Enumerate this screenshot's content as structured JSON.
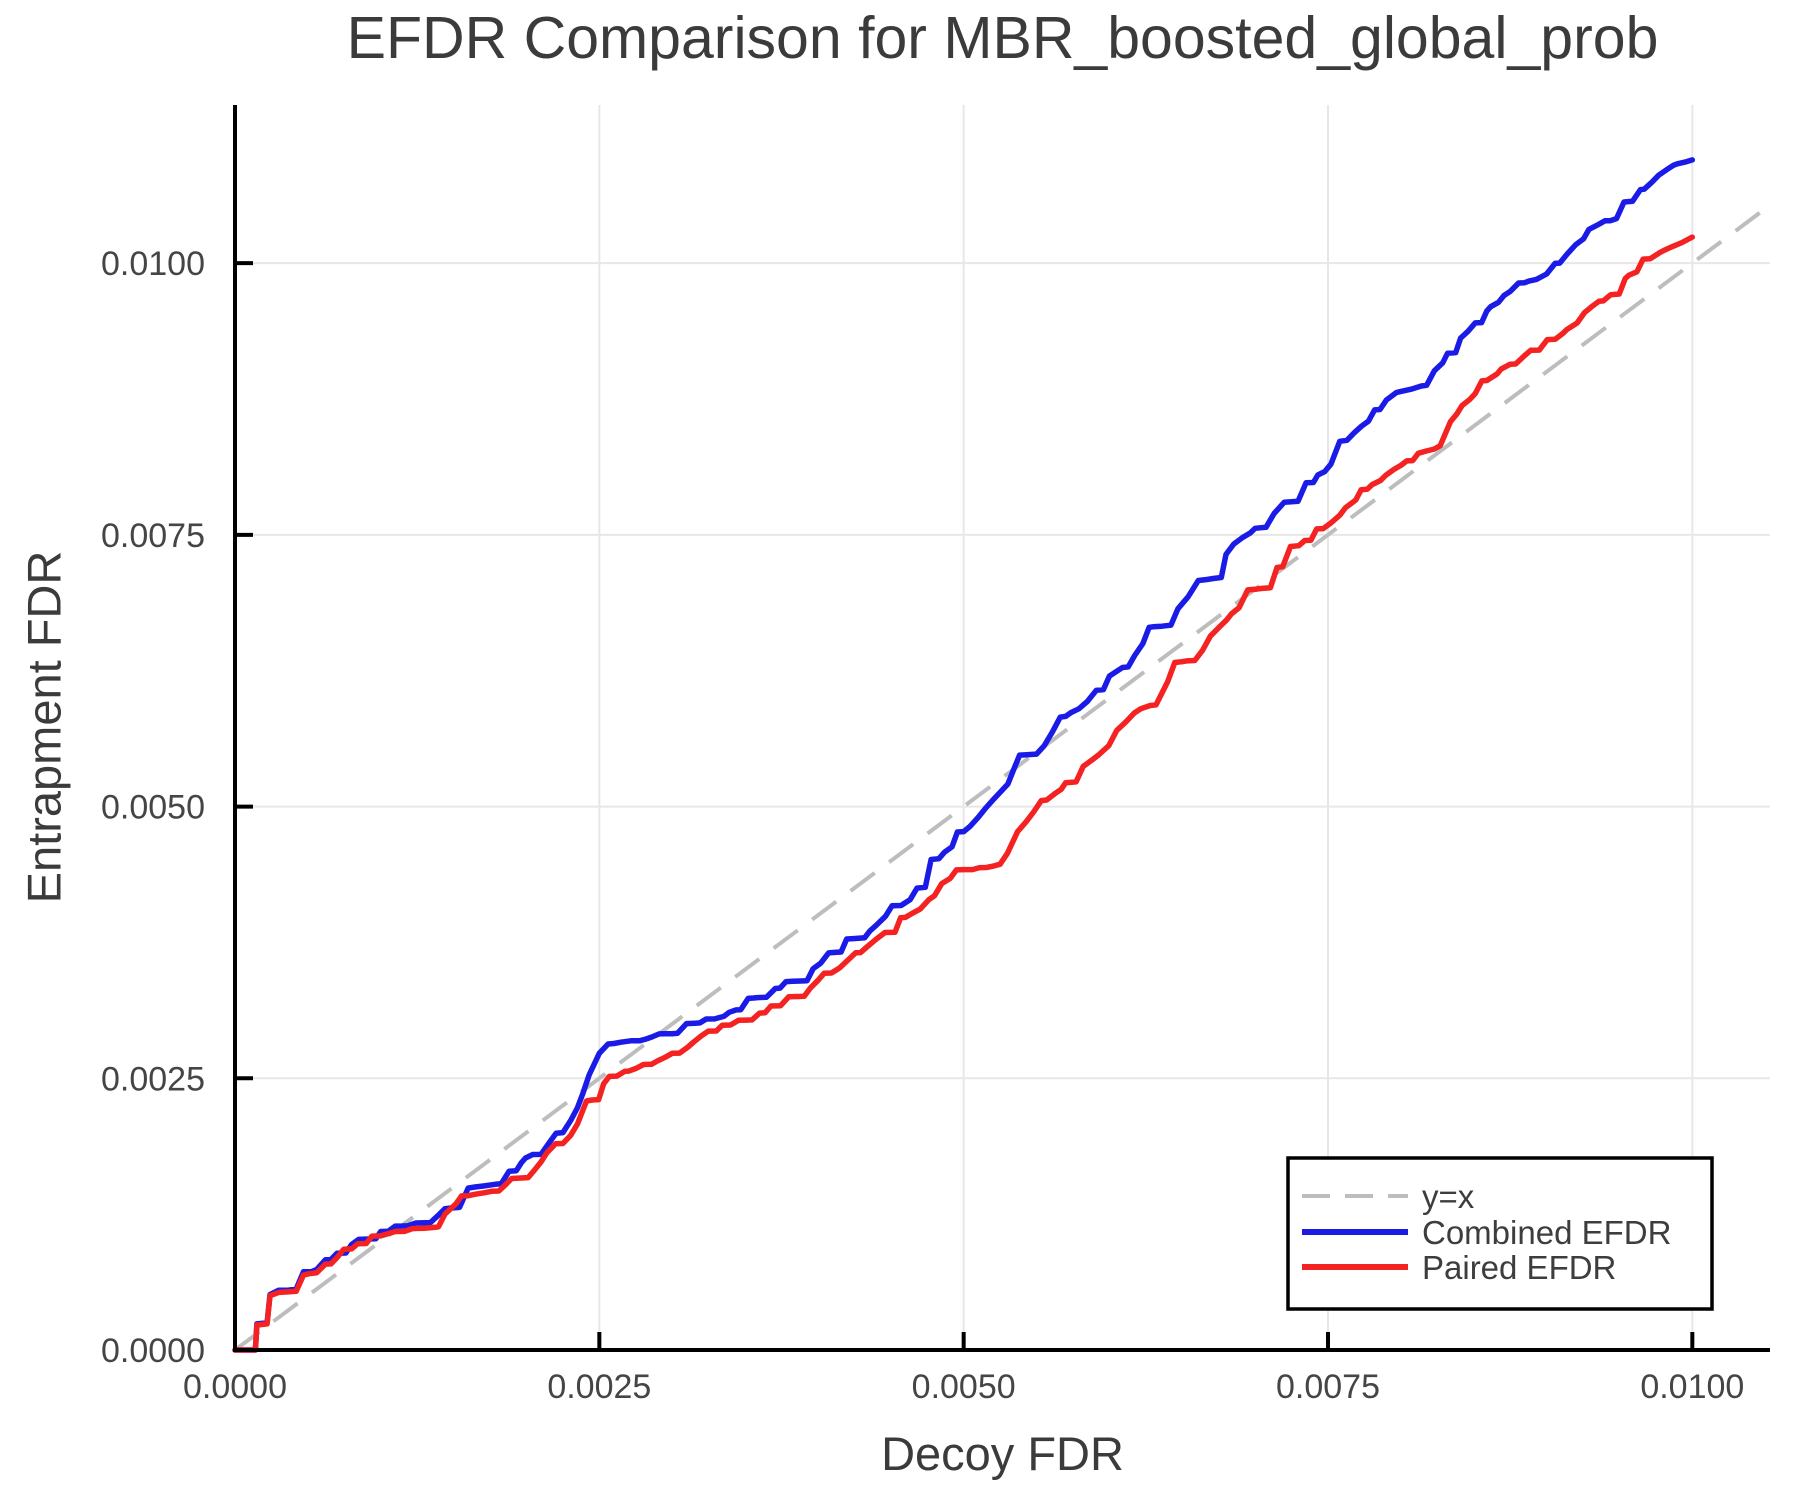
{
  "chart_data": {
    "type": "line",
    "title": "EFDR Comparison for MBR_boosted_global_prob",
    "xlabel": "Decoy FDR",
    "ylabel": "Entrapment FDR",
    "xlim": [
      0,
      0.010533
    ],
    "ylim": [
      0,
      0.011455
    ],
    "grid": true,
    "legend_position": "bottom-right",
    "xticks": {
      "values": [
        0,
        0.0025,
        0.005,
        0.0075,
        0.01
      ],
      "labels": [
        "0.0000",
        "0.0025",
        "0.0050",
        "0.0075",
        "0.0100"
      ]
    },
    "yticks": {
      "values": [
        0,
        0.0025,
        0.005,
        0.0075,
        0.01
      ],
      "labels": [
        "0.0000",
        "0.0025",
        "0.0050",
        "0.0075",
        "0.0100"
      ]
    },
    "series": [
      {
        "name": "y=x",
        "style": "dashed",
        "color": "#bdbdbd",
        "points": [
          [
            0,
            0
          ],
          [
            0.010533,
            0.010533
          ]
        ]
      },
      {
        "name": "Combined EFDR",
        "style": "solid",
        "color": "#1b1be8",
        "points": [
          [
            0,
            0
          ],
          [
            0.00014,
            0
          ],
          [
            0.00015,
            0.00024
          ],
          [
            0.00022,
            0.00025
          ],
          [
            0.00024,
            0.00051
          ],
          [
            0.0003,
            0.00055
          ],
          [
            0.00042,
            0.00056
          ],
          [
            0.00047,
            0.00072
          ],
          [
            0.00056,
            0.00074
          ],
          [
            0.00062,
            0.00083
          ],
          [
            0.0007,
            0.00089
          ],
          [
            0.0008,
            0.00097
          ],
          [
            0.0009,
            0.00102
          ],
          [
            0.001,
            0.00109
          ],
          [
            0.0011,
            0.00114
          ],
          [
            0.0013,
            0.00117
          ],
          [
            0.00144,
            0.0013
          ],
          [
            0.0016,
            0.00149
          ],
          [
            0.00176,
            0.00152
          ],
          [
            0.00193,
            0.00165
          ],
          [
            0.0021,
            0.0018
          ],
          [
            0.00225,
            0.002
          ],
          [
            0.00235,
            0.00223
          ],
          [
            0.00243,
            0.00253
          ],
          [
            0.0025,
            0.00273
          ],
          [
            0.0026,
            0.00282
          ],
          [
            0.00286,
            0.00288
          ],
          [
            0.003,
            0.00291
          ],
          [
            0.00319,
            0.00301
          ],
          [
            0.00347,
            0.00313
          ],
          [
            0.00374,
            0.00333
          ],
          [
            0.00402,
            0.00356
          ],
          [
            0.00429,
            0.00379
          ],
          [
            0.00457,
            0.00409
          ],
          [
            0.00468,
            0.00425
          ],
          [
            0.00483,
            0.00452
          ],
          [
            0.00492,
            0.00463
          ],
          [
            0.005,
            0.00477
          ],
          [
            0.0051,
            0.0049
          ],
          [
            0.00525,
            0.00513
          ],
          [
            0.00534,
            0.00533
          ],
          [
            0.00547,
            0.00548
          ],
          [
            0.00561,
            0.00569
          ],
          [
            0.0057,
            0.00583
          ],
          [
            0.00579,
            0.0059
          ],
          [
            0.00591,
            0.00607
          ],
          [
            0.006,
            0.0062
          ],
          [
            0.00609,
            0.00628
          ],
          [
            0.00623,
            0.0065
          ],
          [
            0.00636,
            0.00666
          ],
          [
            0.00647,
            0.00682
          ],
          [
            0.00654,
            0.00693
          ],
          [
            0.00661,
            0.00708
          ],
          [
            0.0068,
            0.00732
          ],
          [
            0.007,
            0.00756
          ],
          [
            0.0072,
            0.0078
          ],
          [
            0.00735,
            0.00798
          ],
          [
            0.00752,
            0.00815
          ],
          [
            0.00763,
            0.00837
          ],
          [
            0.00773,
            0.0085
          ],
          [
            0.00782,
            0.00865
          ],
          [
            0.0079,
            0.00874
          ],
          [
            0.00797,
            0.00881
          ],
          [
            0.00807,
            0.00884
          ],
          [
            0.00814,
            0.00887
          ],
          [
            0.00823,
            0.00901
          ],
          [
            0.00832,
            0.00917
          ],
          [
            0.00841,
            0.00931
          ],
          [
            0.00851,
            0.00945
          ],
          [
            0.00859,
            0.00956
          ],
          [
            0.00867,
            0.00964
          ],
          [
            0.00875,
            0.00974
          ],
          [
            0.00885,
            0.00982
          ],
          [
            0.00893,
            0.00985
          ],
          [
            0.009,
            0.0099
          ],
          [
            0.00909,
            0.01
          ],
          [
            0.0092,
            0.01017
          ],
          [
            0.00929,
            0.01031
          ],
          [
            0.0094,
            0.01039
          ],
          [
            0.00948,
            0.01041
          ],
          [
            0.00959,
            0.01057
          ],
          [
            0.00967,
            0.01068
          ],
          [
            0.00977,
            0.01081
          ],
          [
            0.00987,
            0.0109
          ],
          [
            0.00995,
            0.01093
          ],
          [
            0.01,
            0.01095
          ]
        ]
      },
      {
        "name": "Paired EFDR",
        "style": "solid",
        "color": "#f52222",
        "points": [
          [
            0,
            0
          ],
          [
            0.00014,
            0
          ],
          [
            0.00015,
            0.00023
          ],
          [
            0.00022,
            0.00024
          ],
          [
            0.00024,
            0.0005
          ],
          [
            0.0003,
            0.00053
          ],
          [
            0.00042,
            0.00054
          ],
          [
            0.00047,
            0.00069
          ],
          [
            0.00056,
            0.00071
          ],
          [
            0.00062,
            0.00079
          ],
          [
            0.0007,
            0.00085
          ],
          [
            0.0008,
            0.00093
          ],
          [
            0.0009,
            0.00098
          ],
          [
            0.001,
            0.00105
          ],
          [
            0.0011,
            0.00109
          ],
          [
            0.0013,
            0.00112
          ],
          [
            0.00144,
            0.00125
          ],
          [
            0.0016,
            0.00142
          ],
          [
            0.00176,
            0.00146
          ],
          [
            0.00193,
            0.00158
          ],
          [
            0.0021,
            0.00173
          ],
          [
            0.00225,
            0.0019
          ],
          [
            0.00235,
            0.00208
          ],
          [
            0.00245,
            0.0023
          ],
          [
            0.00253,
            0.00245
          ],
          [
            0.00262,
            0.00252
          ],
          [
            0.00275,
            0.00259
          ],
          [
            0.0029,
            0.00266
          ],
          [
            0.003,
            0.00273
          ],
          [
            0.0032,
            0.00289
          ],
          [
            0.0034,
            0.00299
          ],
          [
            0.0036,
            0.0031
          ],
          [
            0.0038,
            0.00325
          ],
          [
            0.004,
            0.0034
          ],
          [
            0.0042,
            0.00358
          ],
          [
            0.0044,
            0.00378
          ],
          [
            0.0046,
            0.00398
          ],
          [
            0.0048,
            0.00418
          ],
          [
            0.005,
            0.00442
          ],
          [
            0.00525,
            0.00447
          ],
          [
            0.0053,
            0.00457
          ],
          [
            0.00537,
            0.00477
          ],
          [
            0.00548,
            0.00495
          ],
          [
            0.00557,
            0.00506
          ],
          [
            0.0057,
            0.00522
          ],
          [
            0.00582,
            0.00537
          ],
          [
            0.00593,
            0.00548
          ],
          [
            0.00605,
            0.0057
          ],
          [
            0.00617,
            0.00586
          ],
          [
            0.00628,
            0.00593
          ],
          [
            0.0064,
            0.00615
          ],
          [
            0.00653,
            0.00634
          ],
          [
            0.00664,
            0.00644
          ],
          [
            0.00676,
            0.00666
          ],
          [
            0.00689,
            0.00683
          ],
          [
            0.007,
            0.007
          ],
          [
            0.00715,
            0.0072
          ],
          [
            0.0073,
            0.0074
          ],
          [
            0.00752,
            0.00761
          ],
          [
            0.00762,
            0.00775
          ],
          [
            0.00769,
            0.00782
          ],
          [
            0.00777,
            0.00792
          ],
          [
            0.00786,
            0.008
          ],
          [
            0.00795,
            0.0081
          ],
          [
            0.00804,
            0.00818
          ],
          [
            0.00812,
            0.00825
          ],
          [
            0.00823,
            0.00829
          ],
          [
            0.00827,
            0.00832
          ],
          [
            0.00834,
            0.00854
          ],
          [
            0.00842,
            0.00869
          ],
          [
            0.00851,
            0.0088
          ],
          [
            0.00859,
            0.00892
          ],
          [
            0.00866,
            0.00898
          ],
          [
            0.00875,
            0.00907
          ],
          [
            0.00885,
            0.00915
          ],
          [
            0.00895,
            0.0092
          ],
          [
            0.00906,
            0.0093
          ],
          [
            0.00914,
            0.00939
          ],
          [
            0.00921,
            0.00945
          ],
          [
            0.00931,
            0.0096
          ],
          [
            0.00936,
            0.00965
          ],
          [
            0.00944,
            0.00971
          ],
          [
            0.00954,
            0.00986
          ],
          [
            0.00962,
            0.00992
          ],
          [
            0.00971,
            0.01004
          ],
          [
            0.00978,
            0.0101
          ],
          [
            0.00986,
            0.01015
          ],
          [
            0.00993,
            0.01019
          ],
          [
            0.01,
            0.01024
          ]
        ]
      }
    ]
  }
}
